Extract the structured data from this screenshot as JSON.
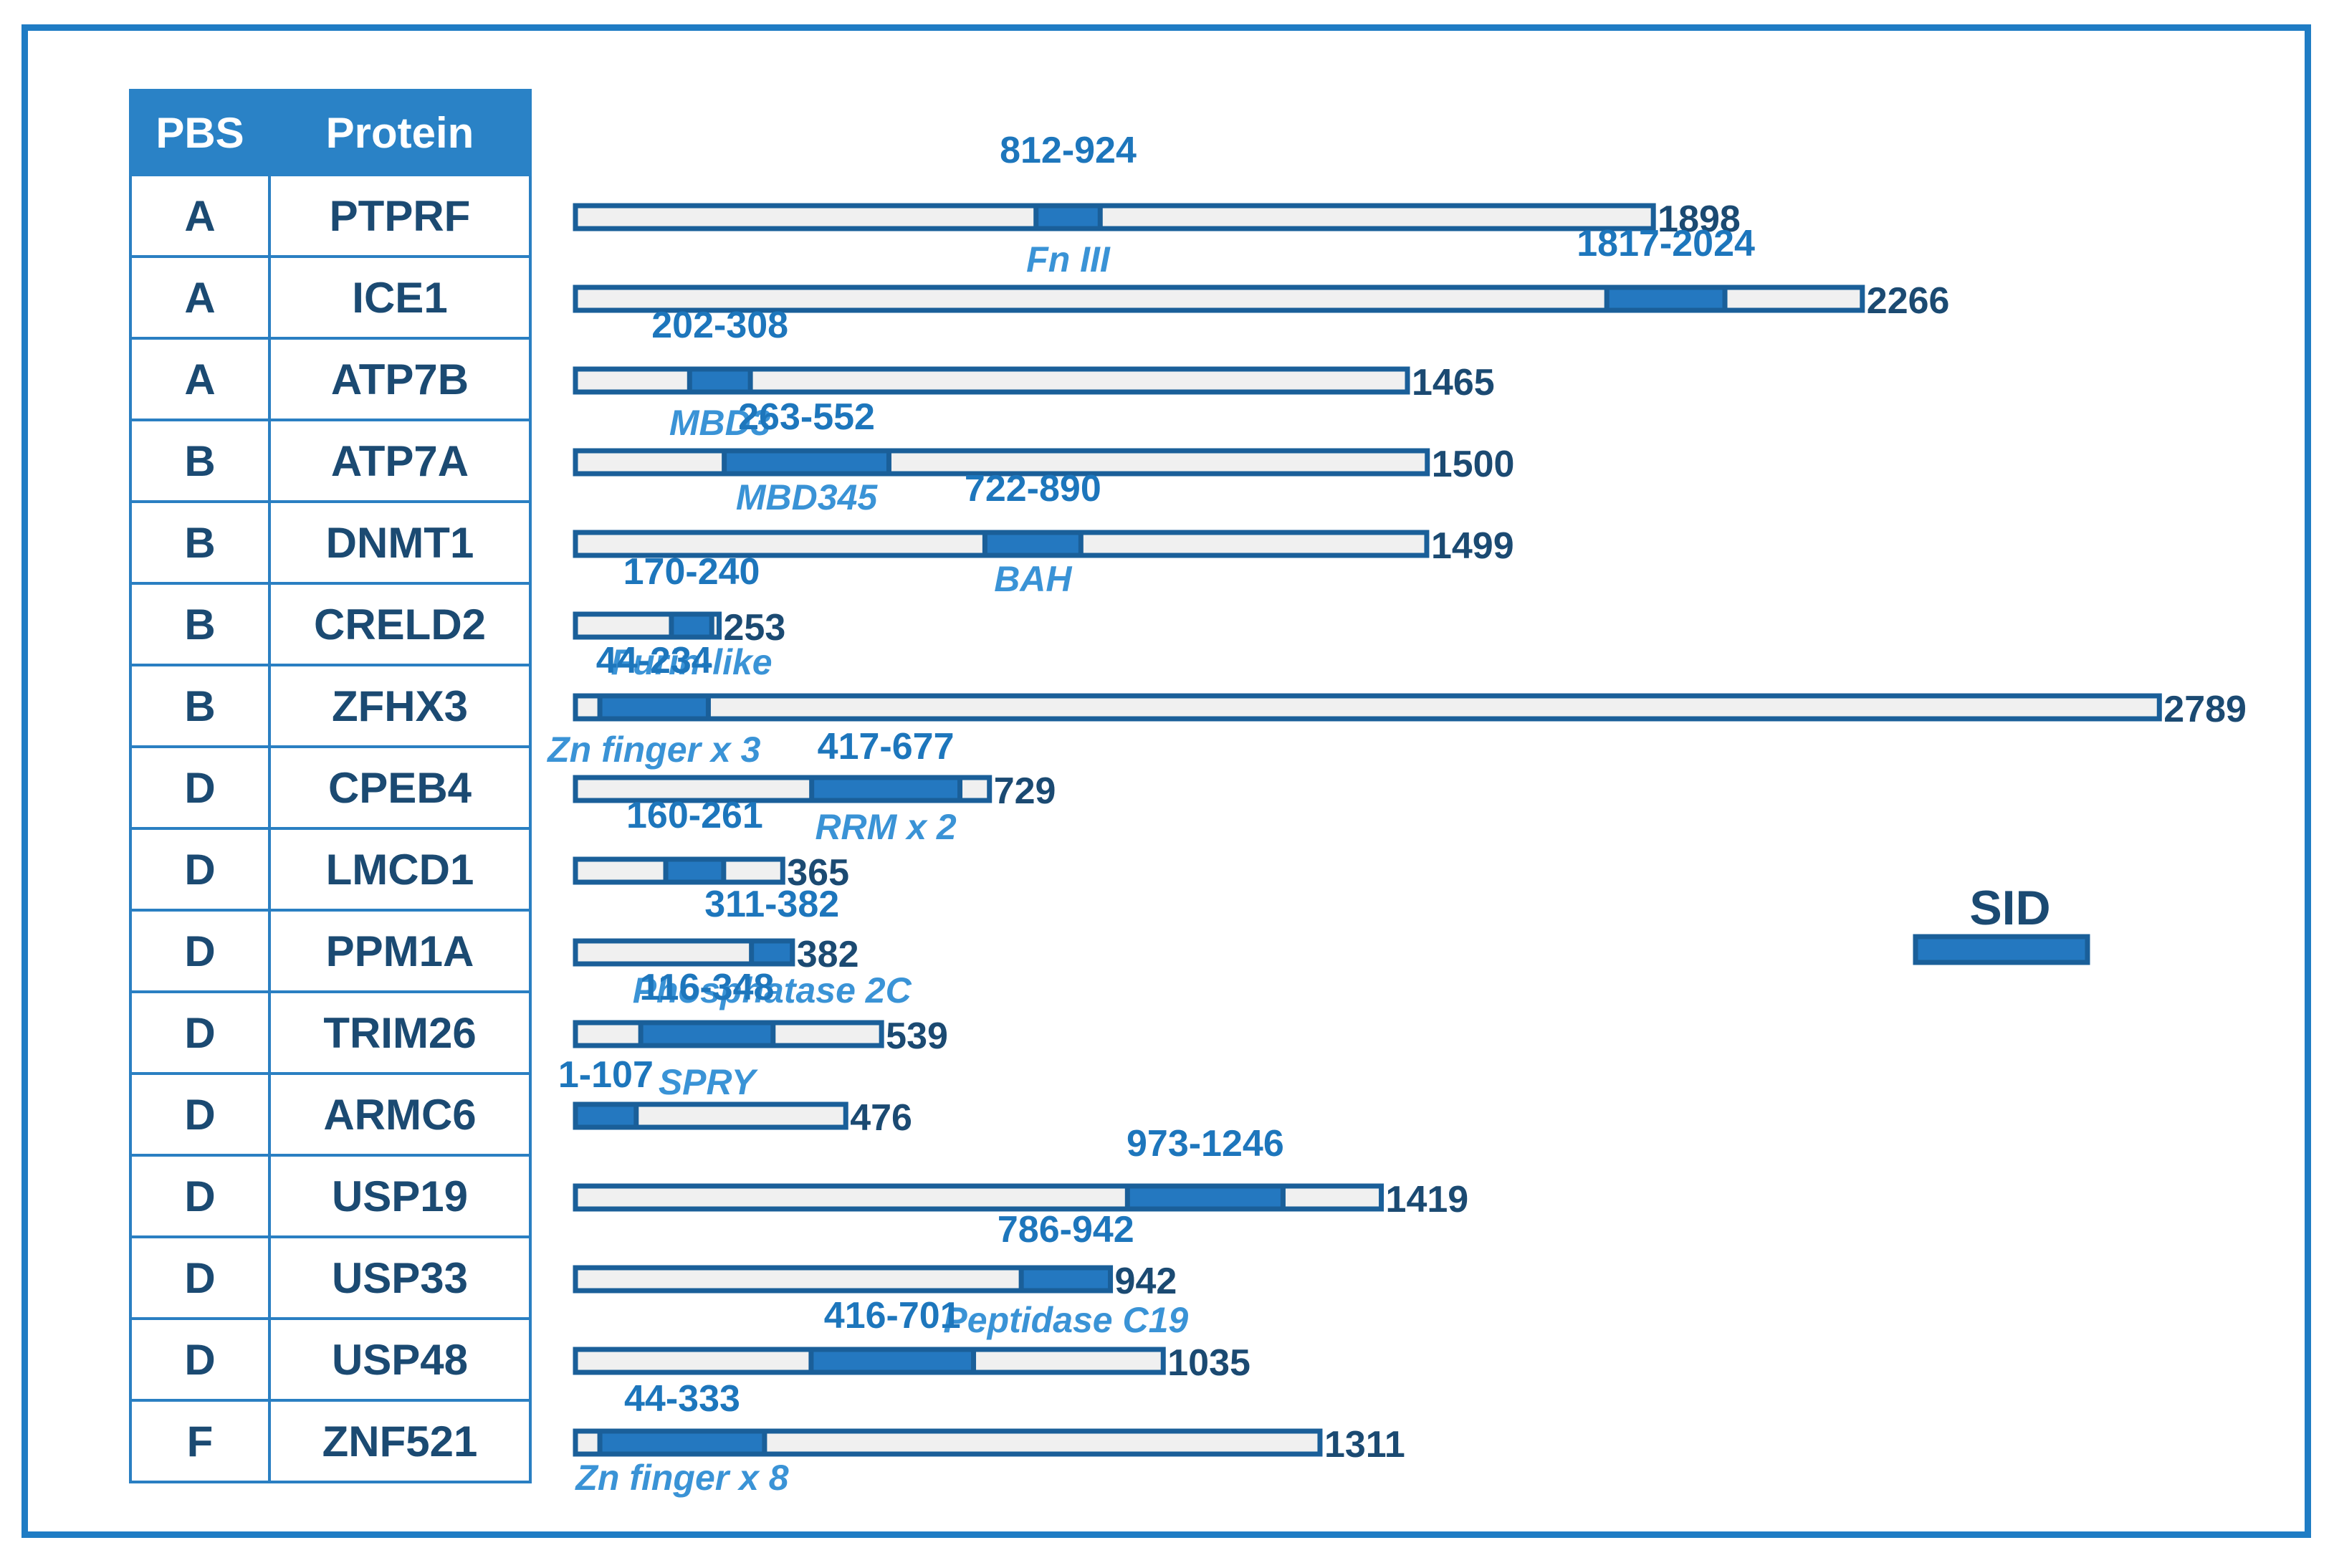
{
  "table": {
    "headers": {
      "pbs": "PBS",
      "protein": "Protein"
    }
  },
  "legend": {
    "label": "SID"
  },
  "colors": {
    "frame": "#1f7cc4",
    "bar_outline": "#1a5f99",
    "bar_fill": "#f0f0f0",
    "sid_fill": "#2478c0",
    "range_text": "#1d76bc",
    "domain_text": "#3a93d6",
    "length_text": "#1b4a72"
  },
  "proteins": [
    {
      "pbs": "A",
      "name": "PTPRF",
      "length": 1898,
      "sid": [
        812,
        924
      ],
      "range_label": "812-924",
      "domain": "Fn III"
    },
    {
      "pbs": "A",
      "name": "ICE1",
      "length": 2266,
      "sid": [
        1817,
        2024
      ],
      "range_label": "1817-2024",
      "domain": ""
    },
    {
      "pbs": "A",
      "name": "ATP7B",
      "length": 1465,
      "sid": [
        202,
        308
      ],
      "range_label": "202-308",
      "domain": "MBD3"
    },
    {
      "pbs": "B",
      "name": "ATP7A",
      "length": 1500,
      "sid": [
        263,
        552
      ],
      "range_label": "263-552",
      "domain": "MBD345"
    },
    {
      "pbs": "B",
      "name": "DNMT1",
      "length": 1499,
      "sid": [
        722,
        890
      ],
      "range_label": "722-890",
      "domain": "BAH"
    },
    {
      "pbs": "B",
      "name": "CRELD2",
      "length": 253,
      "sid": [
        170,
        240
      ],
      "range_label": "170-240",
      "domain": "Furin-like"
    },
    {
      "pbs": "B",
      "name": "ZFHX3",
      "length": 2789,
      "sid": [
        44,
        234
      ],
      "range_label": "44-234",
      "domain": "Zn finger x 3"
    },
    {
      "pbs": "D",
      "name": "CPEB4",
      "length": 729,
      "sid": [
        417,
        677
      ],
      "range_label": "417-677",
      "domain": "RRM x 2"
    },
    {
      "pbs": "D",
      "name": "LMCD1",
      "length": 365,
      "sid": [
        160,
        261
      ],
      "range_label": "160-261",
      "domain": ""
    },
    {
      "pbs": "D",
      "name": "PPM1A",
      "length": 382,
      "sid": [
        311,
        382
      ],
      "range_label": "311-382",
      "domain": "Phosphatase 2C"
    },
    {
      "pbs": "D",
      "name": "TRIM26",
      "length": 539,
      "sid": [
        116,
        348
      ],
      "range_label": "116-348",
      "domain": "SPRY"
    },
    {
      "pbs": "D",
      "name": "ARMC6",
      "length": 476,
      "sid": [
        1,
        107
      ],
      "range_label": "1-107",
      "domain": ""
    },
    {
      "pbs": "D",
      "name": "USP19",
      "length": 1419,
      "sid": [
        973,
        1246
      ],
      "range_label": "973-1246",
      "domain": ""
    },
    {
      "pbs": "D",
      "name": "USP33",
      "length": 942,
      "sid": [
        786,
        942
      ],
      "range_label": "786-942",
      "domain": "Peptidase C19"
    },
    {
      "pbs": "D",
      "name": "USP48",
      "length": 1035,
      "sid": [
        416,
        701
      ],
      "range_label": "416-701",
      "domain": ""
    },
    {
      "pbs": "F",
      "name": "ZNF521",
      "length": 1311,
      "sid": [
        44,
        333
      ],
      "range_label": "44-333",
      "domain": "Zn finger x 8"
    }
  ]
}
